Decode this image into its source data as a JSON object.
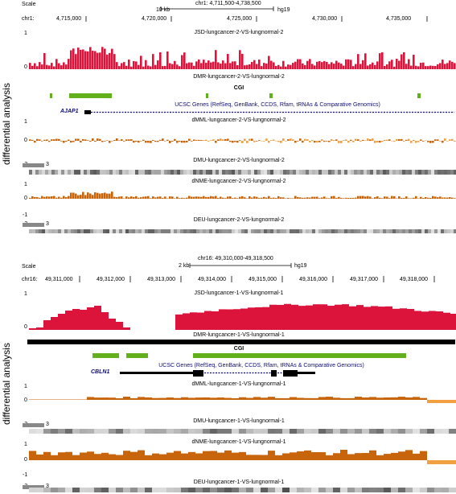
{
  "side_label": "differential analysis",
  "colors": {
    "jsd": "#dc143c",
    "orange": "#c8640a",
    "orange_light": "#f0a040",
    "cgi": "#62b11c",
    "navy": "#0c0c78"
  },
  "panel1": {
    "scale_label": "Scale",
    "scale_bar_label": "10 kb",
    "range_label": "chr1: 4,711,500-4,738,500",
    "assembly": "hg19",
    "chrom": "chr1:",
    "ticks": [
      "4,715,000",
      "4,720,000",
      "4,725,000",
      "4,730,000",
      "4,735,000"
    ],
    "one_label": "1",
    "zero_label": "0",
    "neg_one_label": "-1",
    "neg_three_label": "-3",
    "three_label": "3",
    "jsd_title": "JSD-lungcancer-2-VS-lungnormal-2",
    "dmr_title": "DMR-lungcancer-2-VS-lungnormal-2",
    "cgi_title": "CGI",
    "genes_title": "UCSC Genes (RefSeq, GenBank, CCDS, Rfam, tRNAs & Comparative Genomics)",
    "gene_name": "AJAP1",
    "dmml_title": "dMML-lungcancer-2-VS-lungnormal-2",
    "dmu_title": "DMU-lungcancer-2-VS-lungnormal-2",
    "dnme_title": "dNME-lungcancer-2-VS-lungnormal-2",
    "deu_title": "DEU-lungcancer-2-VS-lungnormal-2"
  },
  "panel2": {
    "scale_label": "Scale",
    "scale_bar_label": "2 kb",
    "range_label": "chr16: 49,310,000-49,318,500",
    "assembly": "hg19",
    "chrom": "chr16:",
    "ticks": [
      "49,311,000",
      "49,312,000",
      "49,313,000",
      "49,314,000",
      "49,315,000",
      "49,316,000",
      "49,317,000",
      "49,318,000"
    ],
    "one_label": "1",
    "zero_label": "0",
    "neg_one_label": "-1",
    "neg_three_label": "-3",
    "three_label": "3",
    "jsd_title": "JSD-lungcancer-1-VS-lungnormal-1",
    "dmr_title": "DMR-lungcancer-1-VS-lungnormal-1",
    "cgi_title": "CGI",
    "genes_title": "UCSC Genes (RefSeq, GenBank, CCDS, Rfam, tRNAs & Comparative Genomics)",
    "gene_name": "CBLN1",
    "dmml_title": "dMML-lungcancer-1-VS-lungnormal-1",
    "dmu_title": "DMU-lungcancer-1-VS-lungnormal-1",
    "dnme_title": "dNME-lungcancer-1-VS-lungnormal-1",
    "deu_title": "DEU-lungcancer-1-VS-lungnormal-1"
  }
}
